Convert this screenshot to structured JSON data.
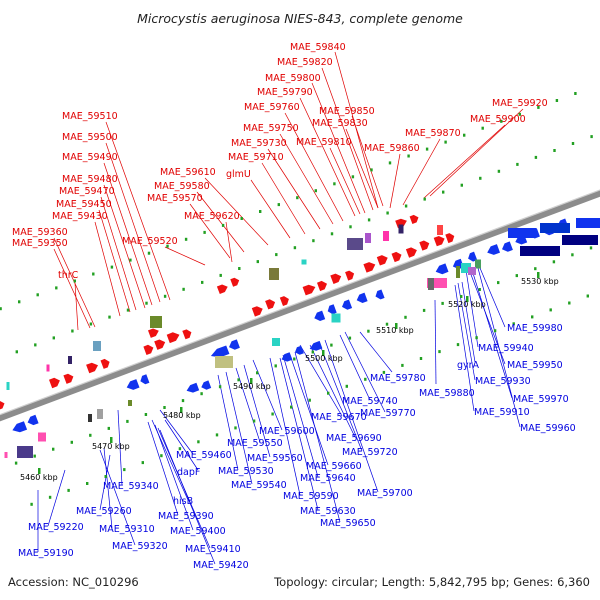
{
  "title": "Microcystis aeruginosa NIES-843, complete genome",
  "accession_text": "Accession: NC_010296",
  "summary_text": "Topology: circular; Length: 5,842,795 bp; Genes: 6,360",
  "colors": {
    "forward_label": "#e00000",
    "reverse_label": "#0000e0",
    "forward_arrow": "#ee1111",
    "reverse_arrow": "#1133ee",
    "backbone": "#8c8c8c",
    "tick": "#22a022"
  },
  "kbp_labels": [
    "5460 kbp",
    "5470 kbp",
    "5480 kbp",
    "5490 kbp",
    "5500 kbp",
    "5510 kbp",
    "5520 kbp",
    "5530 kbp"
  ],
  "upper_labels": [
    "MAE_59840",
    "MAE_59820",
    "MAE_59800",
    "MAE_59790",
    "MAE_59850",
    "MAE_59760",
    "MAE_59830",
    "MAE_59510",
    "MAE_59750",
    "MAE_59810",
    "MAE_59920",
    "MAE_59900",
    "MAE_59500",
    "MAE_59870",
    "MAE_59730",
    "MAE_59860",
    "MAE_59490",
    "MAE_59710",
    "MAE_59610",
    "MAE_59480",
    "glmU",
    "MAE_59580",
    "MAE_59470",
    "MAE_59570",
    "MAE_59450",
    "MAE_59430",
    "MAE_59620",
    "MAE_59360",
    "MAE_59520",
    "MAE_59350",
    "thrC"
  ],
  "lower_labels": [
    "MAE_59980",
    "MAE_59940",
    "MAE_59950",
    "gyrA",
    "MAE_59930",
    "MAE_59780",
    "MAE_59880",
    "MAE_59970",
    "MAE_59910",
    "MAE_59740",
    "MAE_59770",
    "MAE_59960",
    "MAE_59670",
    "MAE_59690",
    "MAE_59600",
    "MAE_59720",
    "MAE_59550",
    "MAE_59460",
    "MAE_59560",
    "MAE_59660",
    "dapF",
    "MAE_59530",
    "MAE_59640",
    "MAE_59540",
    "MAE_59700",
    "MAE_59340",
    "MAE_59590",
    "hisB",
    "MAE_59260",
    "MAE_59390",
    "MAE_59630",
    "MAE_59310",
    "MAE_59650",
    "MAE_59220",
    "MAE_59400",
    "MAE_59320",
    "MAE_59410",
    "MAE_59190",
    "MAE_59420"
  ]
}
